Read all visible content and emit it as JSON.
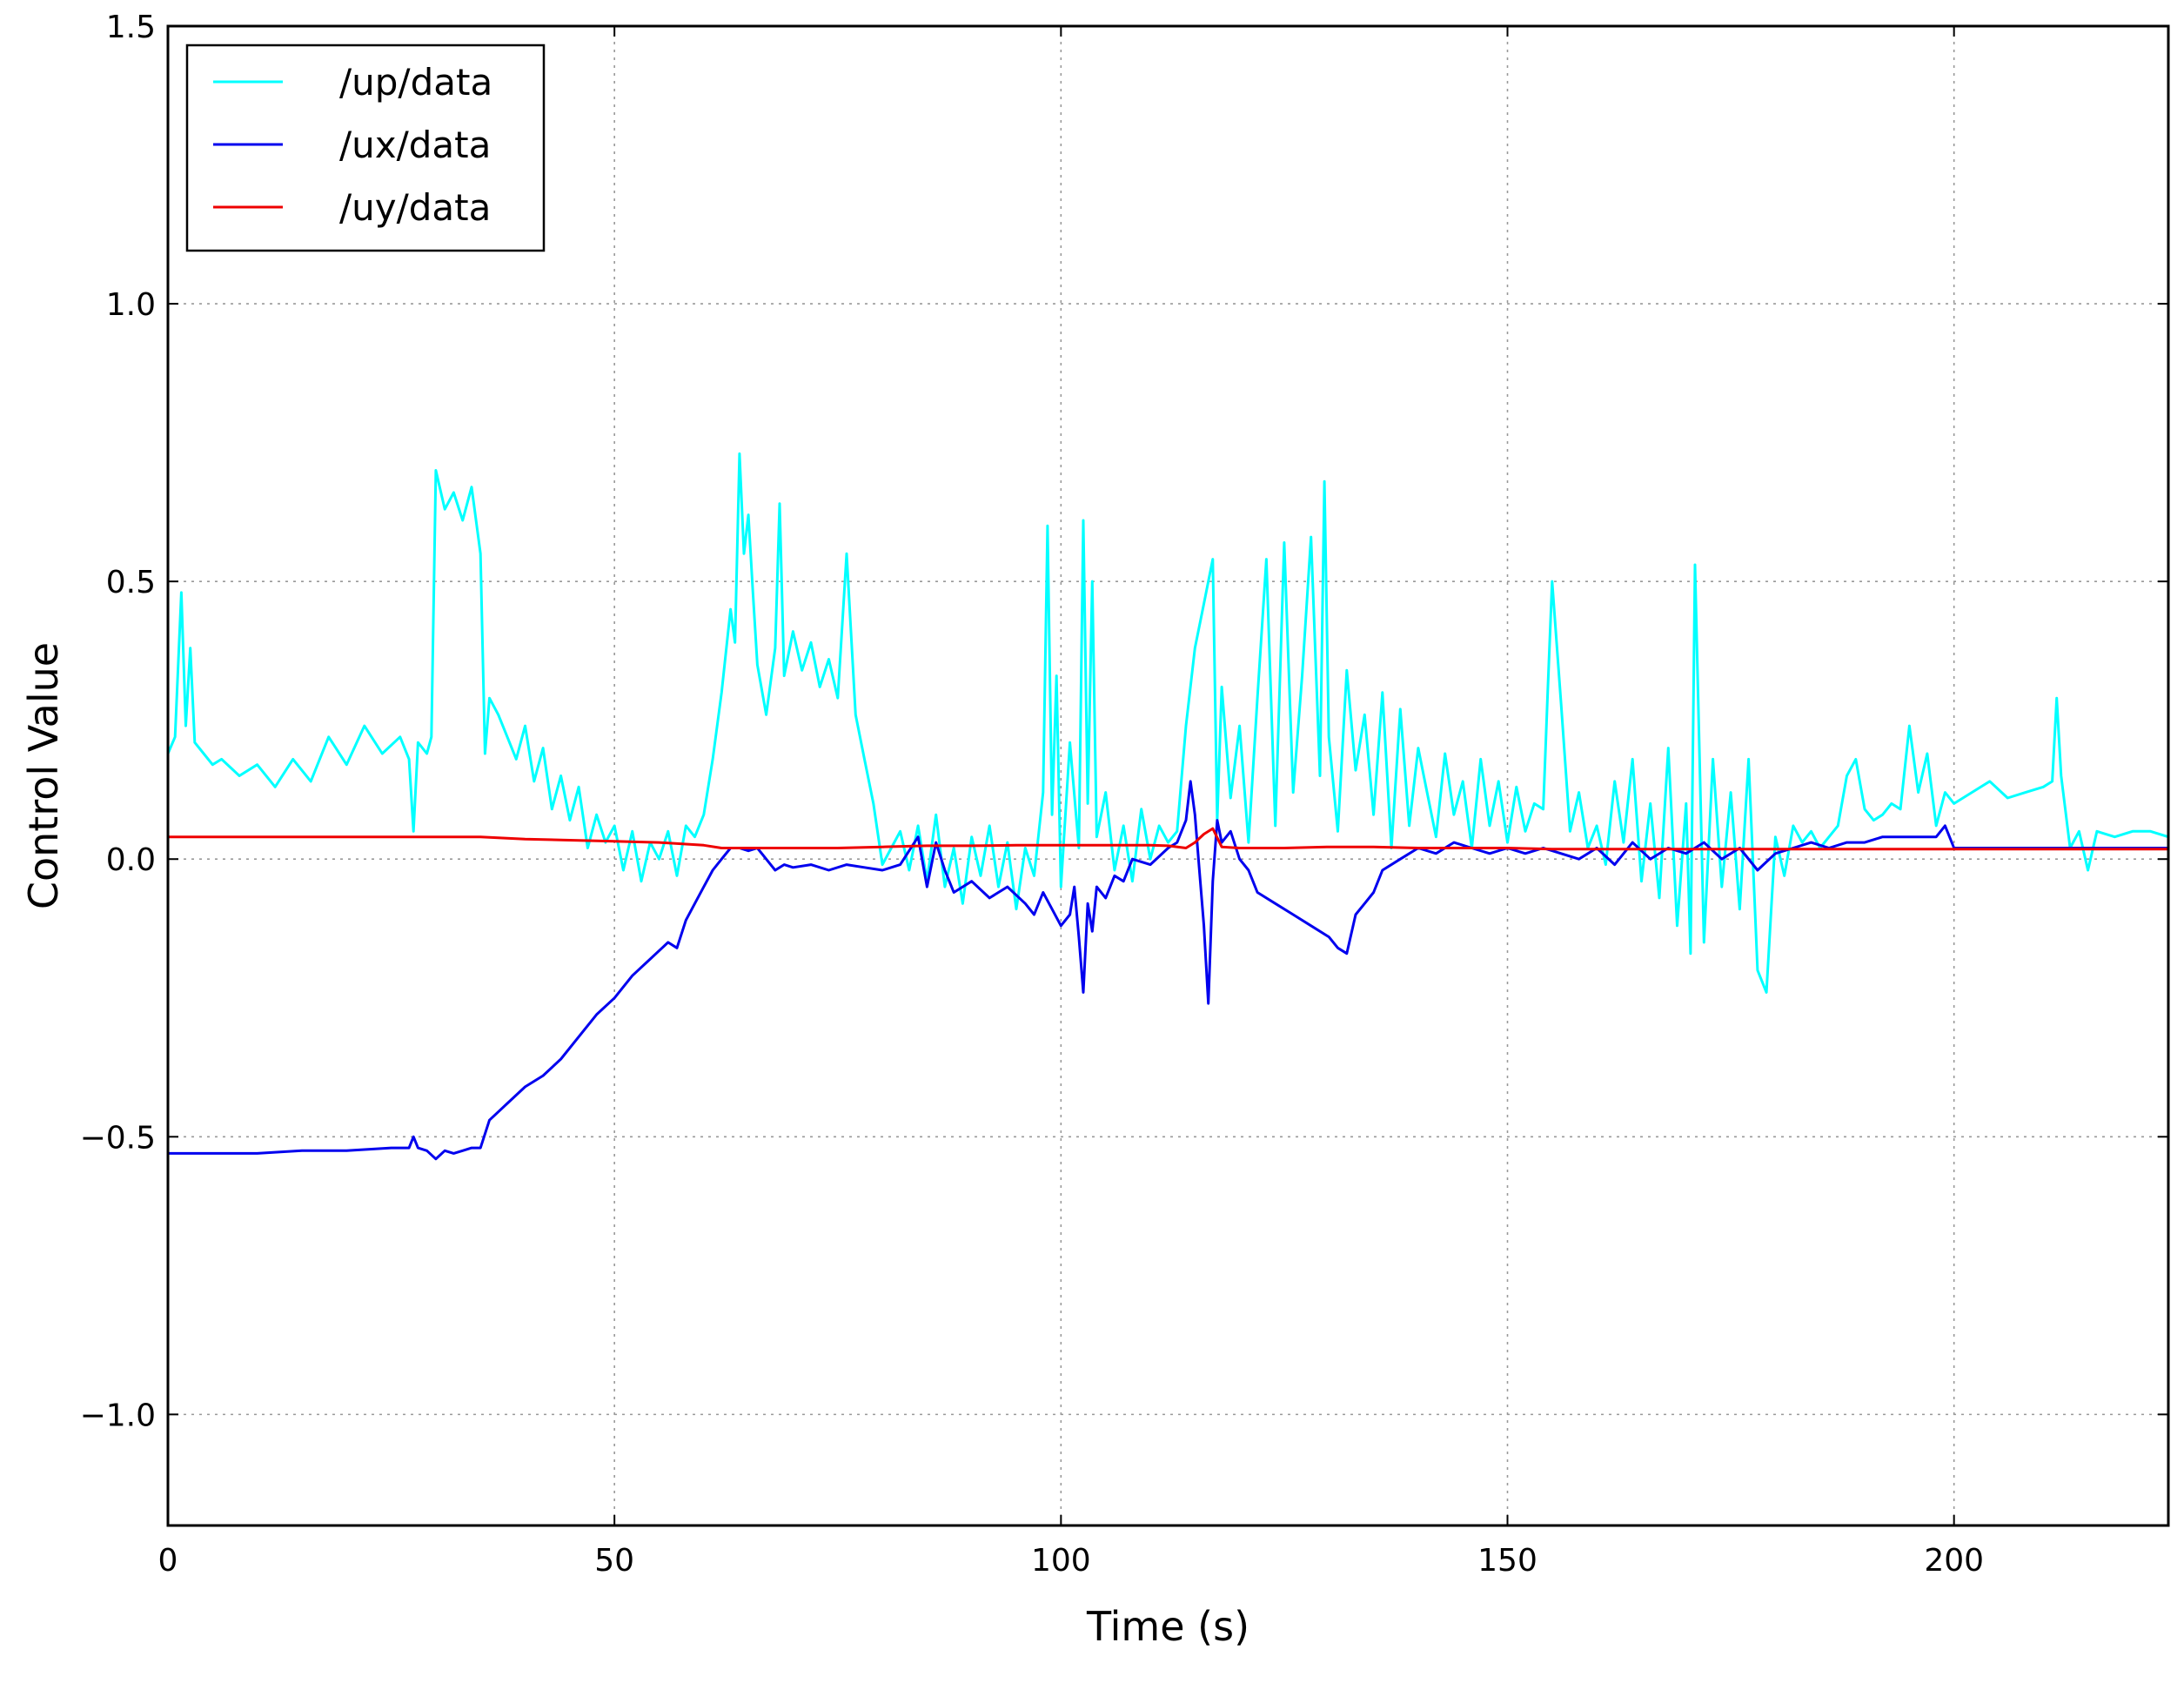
{
  "chart_data": {
    "type": "line",
    "title": "",
    "xlabel": "Time (s)",
    "ylabel": "Control Value",
    "xlim": [
      0,
      224
    ],
    "ylim": [
      -1.2,
      1.5
    ],
    "xticks": [
      0,
      50,
      100,
      150,
      200
    ],
    "yticks": [
      -1.0,
      -0.5,
      0.0,
      0.5,
      1.0,
      1.5
    ],
    "xtick_labels": [
      "0",
      "50",
      "100",
      "150",
      "200"
    ],
    "ytick_labels": [
      "−1.0",
      "−0.5",
      "0.0",
      "0.5",
      "1.0",
      "1.5"
    ],
    "grid": true,
    "legend_position": "top-left",
    "series": [
      {
        "name": "/up/data",
        "color": "#00ffff",
        "x": [
          0,
          0.8,
          1.5,
          2.0,
          2.5,
          3.0,
          4,
          5,
          6,
          8,
          10,
          12,
          14,
          16,
          18,
          20,
          22,
          24,
          26,
          27,
          27.5,
          28,
          29,
          29.5,
          30,
          31,
          32,
          33,
          34,
          35,
          35.5,
          36,
          37,
          38,
          39,
          40,
          41,
          42,
          43,
          44,
          45,
          46,
          47,
          48,
          49,
          50,
          51,
          52,
          53,
          54,
          55,
          56,
          57,
          58,
          59,
          60,
          61,
          62,
          63,
          63.5,
          64,
          64.5,
          65,
          65.5,
          66,
          67,
          68,
          68.5,
          69,
          70,
          71,
          72,
          73,
          74,
          75,
          76,
          77,
          78,
          79,
          80,
          81,
          82,
          83,
          84,
          85,
          86,
          87,
          88,
          89,
          90,
          91,
          92,
          93,
          94,
          95,
          96,
          97,
          98,
          98.5,
          99,
          99.5,
          100,
          101,
          102,
          102.5,
          103,
          103.5,
          104,
          105,
          106,
          107,
          108,
          109,
          110,
          111,
          112,
          113,
          114,
          115,
          116,
          117,
          117.5,
          118,
          119,
          120,
          121,
          122,
          123,
          124,
          125,
          126,
          127,
          128,
          129,
          129.5,
          130,
          131,
          132,
          133,
          134,
          135,
          136,
          137,
          138,
          139,
          140,
          141,
          142,
          143,
          144,
          145,
          146,
          147,
          148,
          149,
          150,
          151,
          152,
          153,
          154,
          154.5,
          155,
          156,
          157,
          158,
          159,
          160,
          161,
          162,
          163,
          164,
          165,
          166,
          167,
          168,
          169,
          170,
          170.5,
          171,
          172,
          173,
          174,
          175,
          176,
          177,
          178,
          179,
          180,
          181,
          182,
          183,
          184,
          185,
          186,
          187,
          188,
          189,
          190,
          191,
          192,
          193,
          194,
          195,
          196,
          197,
          198,
          199,
          200,
          202,
          204,
          206,
          208,
          210,
          211,
          211.5,
          212,
          213,
          214,
          215,
          216,
          218,
          220,
          222,
          224
        ],
        "y": [
          0.19,
          0.22,
          0.48,
          0.24,
          0.38,
          0.21,
          0.19,
          0.17,
          0.18,
          0.15,
          0.17,
          0.13,
          0.18,
          0.14,
          0.22,
          0.17,
          0.24,
          0.19,
          0.22,
          0.18,
          0.05,
          0.21,
          0.19,
          0.22,
          0.7,
          0.63,
          0.66,
          0.61,
          0.67,
          0.55,
          0.19,
          0.29,
          0.26,
          0.22,
          0.18,
          0.24,
          0.14,
          0.2,
          0.09,
          0.15,
          0.07,
          0.13,
          0.02,
          0.08,
          0.03,
          0.06,
          -0.02,
          0.05,
          -0.04,
          0.03,
          0.0,
          0.05,
          -0.03,
          0.06,
          0.04,
          0.08,
          0.18,
          0.3,
          0.45,
          0.39,
          0.73,
          0.55,
          0.62,
          0.48,
          0.35,
          0.26,
          0.38,
          0.64,
          0.33,
          0.41,
          0.34,
          0.39,
          0.31,
          0.36,
          0.29,
          0.55,
          0.26,
          0.18,
          0.1,
          -0.01,
          0.02,
          0.05,
          -0.02,
          0.06,
          -0.04,
          0.08,
          -0.05,
          0.02,
          -0.08,
          0.04,
          -0.03,
          0.06,
          -0.05,
          0.03,
          -0.09,
          0.02,
          -0.03,
          0.12,
          0.6,
          0.08,
          0.33,
          -0.05,
          0.21,
          0.02,
          0.61,
          0.1,
          0.5,
          0.04,
          0.12,
          -0.02,
          0.06,
          -0.04,
          0.09,
          0.0,
          0.06,
          0.03,
          0.05,
          0.24,
          0.38,
          0.46,
          0.54,
          0.07,
          0.31,
          0.11,
          0.24,
          0.03,
          0.29,
          0.54,
          0.06,
          0.57,
          0.12,
          0.33,
          0.58,
          0.15,
          0.68,
          0.22,
          0.05,
          0.34,
          0.16,
          0.26,
          0.08,
          0.3,
          0.02,
          0.27,
          0.06,
          0.2,
          0.12,
          0.04,
          0.19,
          0.08,
          0.14,
          0.02,
          0.18,
          0.06,
          0.14,
          0.03,
          0.13,
          0.05,
          0.1,
          0.09,
          0.3,
          0.5,
          0.28,
          0.05,
          0.12,
          0.02,
          0.06,
          -0.01,
          0.14,
          0.03,
          0.18,
          -0.04,
          0.1,
          -0.07,
          0.2,
          -0.12,
          0.1,
          -0.17,
          0.53,
          -0.15,
          0.18,
          -0.05,
          0.12,
          -0.09,
          0.18,
          -0.2,
          -0.24,
          0.04,
          -0.03,
          0.06,
          0.03,
          0.05,
          0.02,
          0.04,
          0.06,
          0.15,
          0.18,
          0.09,
          0.07,
          0.08,
          0.1,
          0.09,
          0.24,
          0.12,
          0.19,
          0.06,
          0.12,
          0.1,
          0.12,
          0.14,
          0.11,
          0.12,
          0.13,
          0.14,
          0.29,
          0.15,
          0.02,
          0.05,
          -0.02,
          0.05,
          0.04,
          0.05,
          0.05,
          0.04
        ]
      },
      {
        "name": "/ux/data",
        "color": "#0000ee",
        "x": [
          0,
          5,
          10,
          15,
          20,
          25,
          27,
          27.5,
          28,
          29,
          30,
          31,
          32,
          33,
          34,
          35,
          36,
          38,
          40,
          42,
          44,
          46,
          48,
          50,
          52,
          54,
          56,
          57,
          58,
          59,
          60,
          61,
          62,
          63,
          64,
          65,
          66,
          67,
          68,
          69,
          70,
          72,
          74,
          76,
          78,
          80,
          82,
          84,
          85,
          86,
          87,
          88,
          90,
          92,
          94,
          96,
          97,
          98,
          99,
          100,
          101,
          101.5,
          102,
          102.5,
          103,
          103.5,
          104,
          105,
          106,
          107,
          108,
          110,
          112,
          113,
          114,
          114.5,
          115,
          115.5,
          116,
          116.5,
          117,
          117.5,
          118,
          119,
          120,
          121,
          122,
          124,
          126,
          128,
          130,
          131,
          132,
          133,
          134,
          135,
          136,
          138,
          140,
          142,
          144,
          146,
          148,
          150,
          152,
          154,
          156,
          158,
          160,
          162,
          164,
          166,
          168,
          170,
          172,
          174,
          176,
          178,
          180,
          182,
          184,
          186,
          188,
          190,
          192,
          194,
          196,
          198,
          199,
          200,
          205,
          210,
          215,
          220,
          224
        ],
        "y": [
          -0.53,
          -0.53,
          -0.53,
          -0.525,
          -0.525,
          -0.52,
          -0.52,
          -0.5,
          -0.52,
          -0.525,
          -0.54,
          -0.525,
          -0.53,
          -0.525,
          -0.52,
          -0.52,
          -0.47,
          -0.44,
          -0.41,
          -0.39,
          -0.36,
          -0.32,
          -0.28,
          -0.25,
          -0.21,
          -0.18,
          -0.15,
          -0.16,
          -0.11,
          -0.08,
          -0.05,
          -0.02,
          0.0,
          0.02,
          0.02,
          0.015,
          0.02,
          0.0,
          -0.02,
          -0.01,
          -0.015,
          -0.01,
          -0.02,
          -0.01,
          -0.015,
          -0.02,
          -0.01,
          0.04,
          -0.05,
          0.03,
          -0.02,
          -0.06,
          -0.04,
          -0.07,
          -0.05,
          -0.08,
          -0.1,
          -0.06,
          -0.09,
          -0.12,
          -0.1,
          -0.05,
          -0.14,
          -0.24,
          -0.08,
          -0.13,
          -0.05,
          -0.07,
          -0.03,
          -0.04,
          0.0,
          -0.01,
          0.02,
          0.03,
          0.07,
          0.14,
          0.08,
          -0.02,
          -0.12,
          -0.26,
          -0.04,
          0.07,
          0.03,
          0.05,
          0.0,
          -0.02,
          -0.06,
          -0.08,
          -0.1,
          -0.12,
          -0.14,
          -0.16,
          -0.17,
          -0.1,
          -0.08,
          -0.06,
          -0.02,
          0.0,
          0.02,
          0.01,
          0.03,
          0.02,
          0.01,
          0.02,
          0.01,
          0.02,
          0.01,
          0.0,
          0.02,
          -0.01,
          0.03,
          0.0,
          0.02,
          0.01,
          0.03,
          0.0,
          0.02,
          -0.02,
          0.01,
          0.02,
          0.03,
          0.02,
          0.03,
          0.03,
          0.04,
          0.04,
          0.04,
          0.04,
          0.06,
          0.02,
          0.02,
          0.02,
          0.02,
          0.02,
          0.02
        ]
      },
      {
        "name": "/uy/data",
        "color": "#ee0000",
        "x": [
          0,
          10,
          20,
          30,
          35,
          40,
          45,
          50,
          55,
          60,
          62,
          64,
          66,
          70,
          75,
          80,
          85,
          90,
          95,
          100,
          105,
          110,
          112,
          114,
          115,
          116,
          117,
          118,
          120,
          125,
          130,
          135,
          140,
          145,
          150,
          155,
          160,
          170,
          180,
          190,
          200,
          210,
          220,
          224
        ],
        "y": [
          0.04,
          0.04,
          0.04,
          0.04,
          0.04,
          0.036,
          0.034,
          0.032,
          0.03,
          0.025,
          0.02,
          0.02,
          0.02,
          0.02,
          0.02,
          0.022,
          0.024,
          0.024,
          0.025,
          0.025,
          0.025,
          0.025,
          0.024,
          0.02,
          0.03,
          0.045,
          0.055,
          0.022,
          0.02,
          0.02,
          0.022,
          0.022,
          0.02,
          0.02,
          0.02,
          0.018,
          0.018,
          0.018,
          0.018,
          0.018,
          0.018,
          0.018,
          0.018,
          0.018
        ]
      }
    ]
  }
}
